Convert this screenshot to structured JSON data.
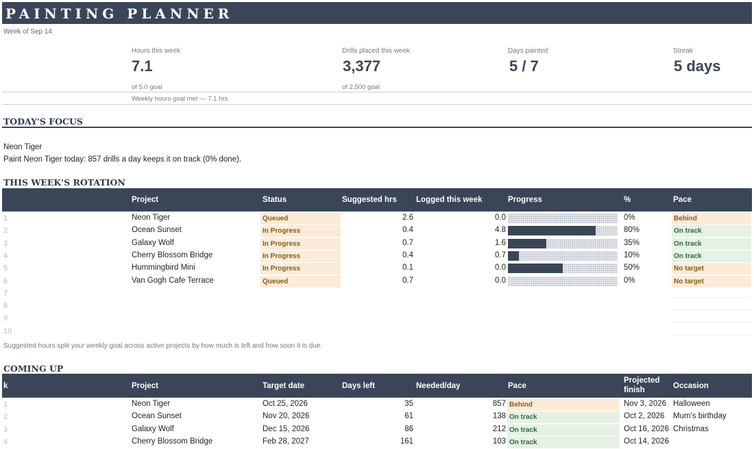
{
  "header": {
    "title": "PAINTING PLANNER",
    "week": "Week of Sep 14"
  },
  "stats": {
    "hours": {
      "label": "Hours this week",
      "value": "7.1",
      "sub": "of 5.0 goal",
      "note": "Weekly hours goal met — 7.1 hrs."
    },
    "drills": {
      "label": "Drills placed this week",
      "value": "3,377",
      "sub": "of 2,500 goal"
    },
    "days": {
      "label": "Days painted",
      "value": "5 / 7"
    },
    "streak": {
      "label": "Streak",
      "value": "5 days"
    }
  },
  "focus": {
    "heading": "TODAY'S FOCUS",
    "project": "Neon Tiger",
    "message": "Paint Neon Tiger today: 857 drills a day keeps it on track (0% done)."
  },
  "rotation": {
    "heading": "THIS WEEK'S ROTATION",
    "columns": {
      "project": "Project",
      "status": "Status",
      "suggested": "Suggested hrs",
      "logged": "Logged this week",
      "progress": "Progress",
      "pct": "%",
      "pace": "Pace"
    },
    "rows": [
      {
        "n": "1",
        "project": "Neon Tiger",
        "status": "Queued",
        "suggested": "2.6",
        "logged": "0.0",
        "progress": 0,
        "pct": "0%",
        "pace": "Behind",
        "pace_kind": "behind"
      },
      {
        "n": "2",
        "project": "Ocean Sunset",
        "status": "In Progress",
        "suggested": "0.4",
        "logged": "4.8",
        "progress": 0.8,
        "pct": "80%",
        "pace": "On track",
        "pace_kind": "ontrack"
      },
      {
        "n": "3",
        "project": "Galaxy Wolf",
        "status": "In Progress",
        "suggested": "0.7",
        "logged": "1.6",
        "progress": 0.35,
        "pct": "35%",
        "pace": "On track",
        "pace_kind": "ontrack"
      },
      {
        "n": "4",
        "project": "Cherry Blossom Bridge",
        "status": "In Progress",
        "suggested": "0.4",
        "logged": "0.7",
        "progress": 0.1,
        "pct": "10%",
        "pace": "On track",
        "pace_kind": "ontrack"
      },
      {
        "n": "5",
        "project": "Hummingbird Mini",
        "status": "In Progress",
        "suggested": "0.1",
        "logged": "0.0",
        "progress": 0.5,
        "pct": "50%",
        "pace": "No target",
        "pace_kind": "notarget"
      },
      {
        "n": "6",
        "project": "Van Gogh Cafe Terrace",
        "status": "Queued",
        "suggested": "0.7",
        "logged": "0.0",
        "progress": 0,
        "pct": "0%",
        "pace": "No target",
        "pace_kind": "notarget"
      }
    ],
    "empty_rows": [
      "7",
      "8",
      "9",
      "10"
    ],
    "note": "Suggested hours split your weekly goal across active projects by how much is left and how soon it is due."
  },
  "coming": {
    "heading": "COMING UP",
    "columns": {
      "k": "k",
      "project": "Project",
      "target": "Target date",
      "days_left": "Days left",
      "needed": "Needed/day",
      "pace": "Pace",
      "finish_1": "Projected",
      "finish_2": "finish",
      "occasion": "Occasion"
    },
    "rows": [
      {
        "n": "1",
        "project": "Neon Tiger",
        "target": "Oct 25, 2026",
        "days_left": "35",
        "needed": "857",
        "pace": "Behind",
        "pace_kind": "behind",
        "finish": "Nov 3, 2026",
        "occasion": "Halloween"
      },
      {
        "n": "2",
        "project": "Ocean Sunset",
        "target": "Nov 20, 2026",
        "days_left": "61",
        "needed": "138",
        "pace": "On track",
        "pace_kind": "ontrack",
        "finish": "Oct 2, 2026",
        "occasion": "Mum's birthday"
      },
      {
        "n": "3",
        "project": "Galaxy Wolf",
        "target": "Dec 15, 2026",
        "days_left": "86",
        "needed": "212",
        "pace": "On track",
        "pace_kind": "ontrack",
        "finish": "Oct 16, 2026",
        "occasion": "Christmas"
      },
      {
        "n": "4",
        "project": "Cherry Blossom Bridge",
        "target": "Feb 28, 2027",
        "days_left": "161",
        "needed": "103",
        "pace": "On track",
        "pace_kind": "ontrack",
        "finish": "Oct 14, 2026",
        "occasion": ""
      }
    ]
  }
}
